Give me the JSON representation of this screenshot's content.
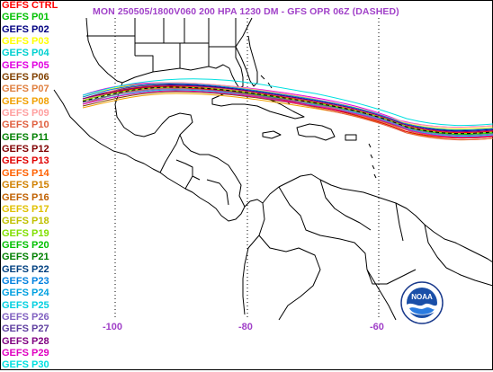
{
  "title": "MON 250505/1800V060  200 HPA 1230 DM - GFS OPR 06Z (DASHED)",
  "legend": [
    {
      "label": "GEFS CTRL",
      "color": "#ff0000"
    },
    {
      "label": "GEFS P01",
      "color": "#00c000"
    },
    {
      "label": "GEFS P02",
      "color": "#000080"
    },
    {
      "label": "GEFS P03",
      "color": "#ffff00"
    },
    {
      "label": "GEFS P04",
      "color": "#00d0d0"
    },
    {
      "label": "GEFS P05",
      "color": "#e000e0"
    },
    {
      "label": "GEFS P06",
      "color": "#804000"
    },
    {
      "label": "GEFS P07",
      "color": "#e08040"
    },
    {
      "label": "GEFS P08",
      "color": "#f0a000"
    },
    {
      "label": "GEFS P09",
      "color": "#ffa0a0"
    },
    {
      "label": "GEFS P10",
      "color": "#e06040"
    },
    {
      "label": "GEFS P11",
      "color": "#008000"
    },
    {
      "label": "GEFS P12",
      "color": "#800000"
    },
    {
      "label": "GEFS P13",
      "color": "#e00000"
    },
    {
      "label": "GEFS P14",
      "color": "#ff6000"
    },
    {
      "label": "GEFS P15",
      "color": "#d08000"
    },
    {
      "label": "GEFS P16",
      "color": "#c06000"
    },
    {
      "label": "GEFS P17",
      "color": "#e0c000"
    },
    {
      "label": "GEFS P18",
      "color": "#c0c000"
    },
    {
      "label": "GEFS P19",
      "color": "#80e000"
    },
    {
      "label": "GEFS P20",
      "color": "#00c000"
    },
    {
      "label": "GEFS P21",
      "color": "#008000"
    },
    {
      "label": "GEFS P22",
      "color": "#004080"
    },
    {
      "label": "GEFS P23",
      "color": "#0080e0"
    },
    {
      "label": "GEFS P24",
      "color": "#00a0e0"
    },
    {
      "label": "GEFS P25",
      "color": "#00d0e0"
    },
    {
      "label": "GEFS P26",
      "color": "#8060c0"
    },
    {
      "label": "GEFS P27",
      "color": "#6040a0"
    },
    {
      "label": "GEFS P28",
      "color": "#800080"
    },
    {
      "label": "GEFS P29",
      "color": "#e000c0"
    },
    {
      "label": "GEFS P30",
      "color": "#00e0e0"
    }
  ],
  "longitude_labels": [
    {
      "text": "-100"
    },
    {
      "text": "-80"
    },
    {
      "text": "-60"
    }
  ],
  "longitude_lines": [
    -100,
    -80,
    -60
  ],
  "label_color": "#a040c8",
  "map_border_color": "#000000",
  "gridline_color": "#000000",
  "logo": "noaa-logo"
}
